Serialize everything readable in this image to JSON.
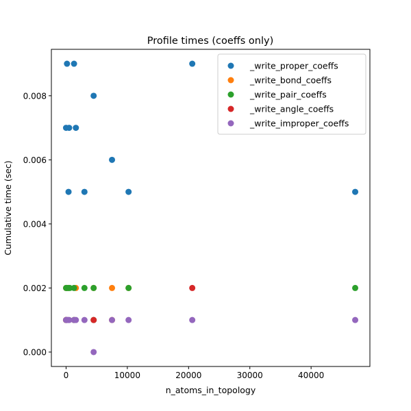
{
  "chart_data": {
    "type": "scatter",
    "title": "Profile times (coeffs only)",
    "xlabel": "n_atoms_in_topology",
    "ylabel": "Cumulative time (sec)",
    "xlim": [
      -2400,
      49600
    ],
    "ylim": [
      -0.00045,
      0.00945
    ],
    "xticks": [
      0,
      10000,
      20000,
      30000,
      40000
    ],
    "xtick_labels": [
      "0",
      "10000",
      "20000",
      "30000",
      "40000"
    ],
    "yticks": [
      0.0,
      0.002,
      0.004,
      0.006,
      0.008
    ],
    "ytick_labels": [
      "0.000",
      "0.002",
      "0.004",
      "0.006",
      "0.008"
    ],
    "grid": false,
    "legend_position": "top-right",
    "series": [
      {
        "name": "_write_proper_coeffs",
        "color": "#1f77b4",
        "points": [
          [
            0,
            0.007
          ],
          [
            150,
            0.009
          ],
          [
            400,
            0.005
          ],
          [
            500,
            0.007
          ],
          [
            1300,
            0.009
          ],
          [
            1600,
            0.007
          ],
          [
            3000,
            0.005
          ],
          [
            4500,
            0.008
          ],
          [
            7500,
            0.006
          ],
          [
            10200,
            0.005
          ],
          [
            20600,
            0.009
          ],
          [
            47200,
            0.005
          ]
        ]
      },
      {
        "name": "_write_bond_coeffs",
        "color": "#ff7f0e",
        "points": [
          [
            0,
            0.002
          ],
          [
            300,
            0.002
          ],
          [
            1600,
            0.002
          ],
          [
            4500,
            0.002
          ],
          [
            7500,
            0.002
          ],
          [
            10200,
            0.002
          ],
          [
            0,
            0.001
          ],
          [
            1300,
            0.001
          ],
          [
            7500,
            0.001
          ]
        ]
      },
      {
        "name": "_write_pair_coeffs",
        "color": "#2ca02c",
        "points": [
          [
            0,
            0.002
          ],
          [
            150,
            0.002
          ],
          [
            400,
            0.002
          ],
          [
            600,
            0.002
          ],
          [
            1300,
            0.002
          ],
          [
            3000,
            0.002
          ],
          [
            4500,
            0.002
          ],
          [
            10200,
            0.002
          ],
          [
            47200,
            0.002
          ],
          [
            0,
            0.001
          ],
          [
            1300,
            0.001
          ],
          [
            4500,
            0.001
          ]
        ]
      },
      {
        "name": "_write_angle_coeffs",
        "color": "#d62728",
        "points": [
          [
            0,
            0.001
          ],
          [
            4500,
            0.001
          ],
          [
            20600,
            0.002
          ]
        ]
      },
      {
        "name": "_write_improper_coeffs",
        "color": "#9467bd",
        "points": [
          [
            0,
            0.001
          ],
          [
            150,
            0.001
          ],
          [
            300,
            0.001
          ],
          [
            500,
            0.001
          ],
          [
            1300,
            0.001
          ],
          [
            1600,
            0.001
          ],
          [
            3000,
            0.001
          ],
          [
            7500,
            0.001
          ],
          [
            10200,
            0.001
          ],
          [
            20600,
            0.001
          ],
          [
            47200,
            0.001
          ],
          [
            4500,
            0.0
          ]
        ]
      }
    ]
  }
}
